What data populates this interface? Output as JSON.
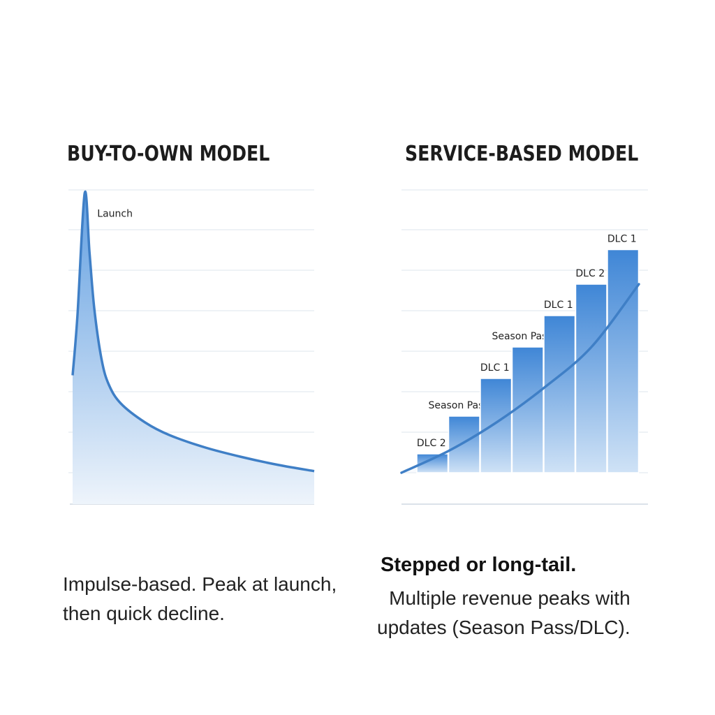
{
  "colors": {
    "line": "#3f7fc6",
    "fill_top": "#5b9be0",
    "fill_bottom": "#eef4fb",
    "grid": "#dde5ee",
    "bar_top": "#3f86d6",
    "bar_bottom": "#cfe2f6"
  },
  "chart_data": [
    {
      "type": "area",
      "title": "BUY-TO-OWN MODEL",
      "xlabel": "",
      "ylabel": "",
      "grid": true,
      "ylim": [
        0,
        100
      ],
      "x": [
        0,
        0.02,
        0.05,
        0.07,
        0.09,
        0.12,
        0.15,
        0.2,
        0.3,
        0.4,
        0.55,
        0.7,
        0.85,
        1.0
      ],
      "values": [
        41,
        60,
        99,
        80,
        62,
        46,
        38,
        32,
        26,
        22,
        18,
        15,
        12.5,
        10.5
      ],
      "annotations": [
        {
          "label": "Launch",
          "x": 0.05
        }
      ]
    },
    {
      "type": "bar",
      "title": "SERVICE-BASED MODEL",
      "xlabel": "",
      "ylabel": "",
      "grid": true,
      "ylim": [
        0,
        100
      ],
      "categories": [
        "DLC 2",
        "Season Pass 1",
        "DLC 1",
        "Season Pass 2",
        "DLC 1",
        "DLC 2",
        "DLC 1"
      ],
      "values": [
        16,
        28,
        40,
        50,
        60,
        70,
        81
      ],
      "trend": {
        "x": [
          0,
          0.2,
          0.4,
          0.6,
          0.8,
          1.0
        ],
        "values": [
          10,
          17,
          26,
          37,
          50,
          70
        ]
      }
    }
  ],
  "captions": {
    "left_line1": "Impulse-based. Peak at launch,",
    "left_line2": "then quick decline.",
    "right_head": "Stepped or long-tail.",
    "right_line1": "Multiple revenue peaks with",
    "right_line2": "updates (Season Pass/DLC)."
  }
}
